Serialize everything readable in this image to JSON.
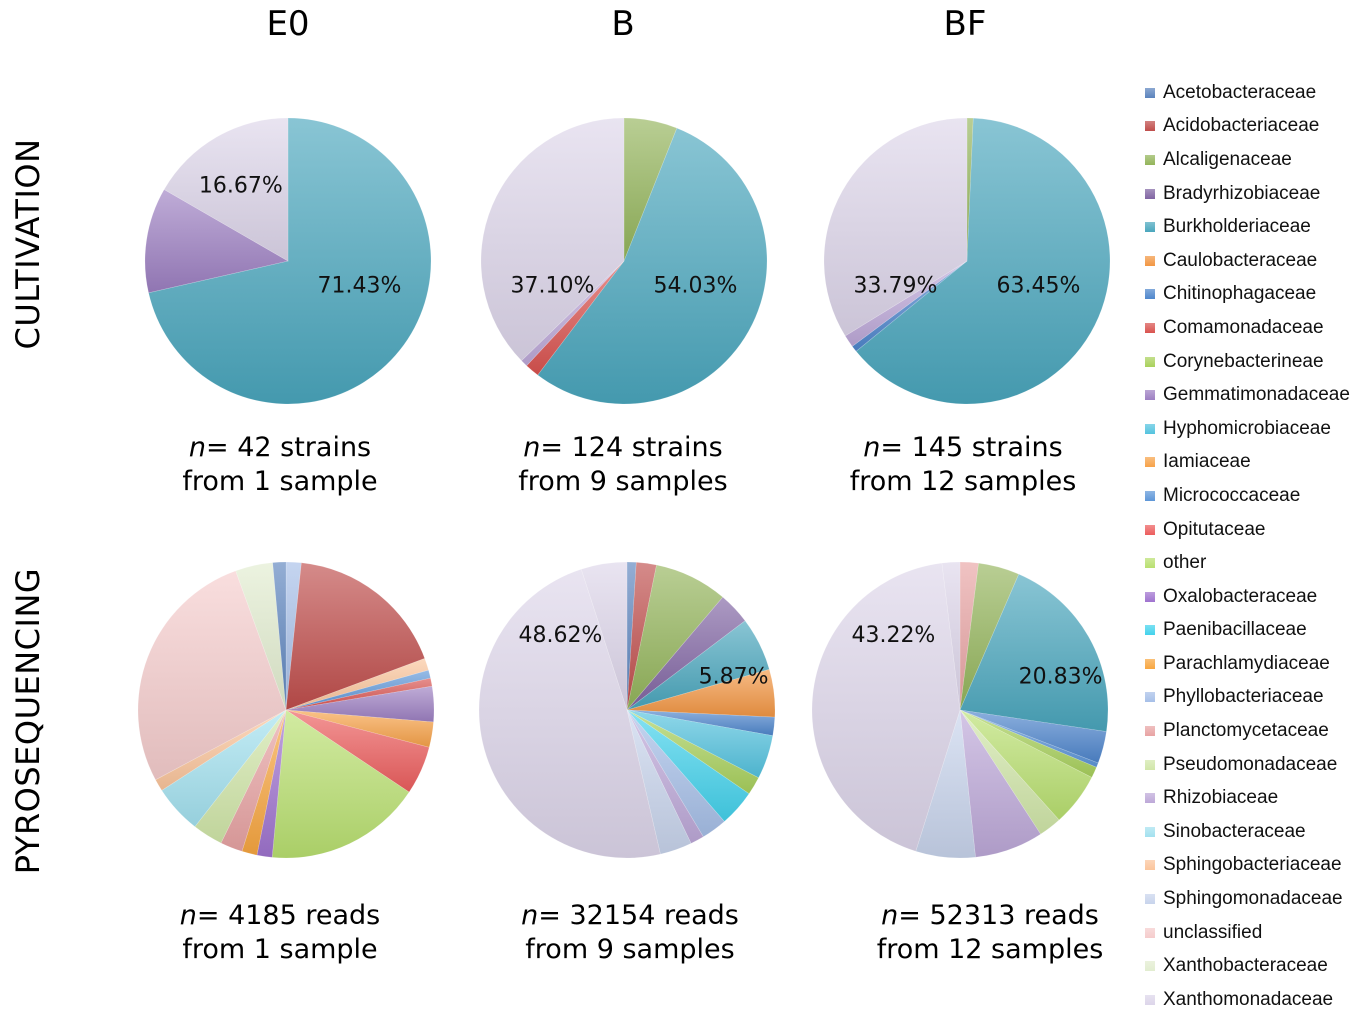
{
  "columns": [
    "E0",
    "B",
    "BF"
  ],
  "rows": [
    "CULTIVATION",
    "PYROSEQUENCING"
  ],
  "legend": [
    {
      "name": "Acetobacteraceae",
      "color": "#5b83bd"
    },
    {
      "name": "Acidobacteriaceae",
      "color": "#bf4d4b"
    },
    {
      "name": "Alcaligenaceae",
      "color": "#93b45a"
    },
    {
      "name": "Bradyrhizobiaceae",
      "color": "#8064a2"
    },
    {
      "name": "Burkholderiaceae",
      "color": "#4aa6bd"
    },
    {
      "name": "Caulobacteraceae",
      "color": "#f29643"
    },
    {
      "name": "Chitinophagaceae",
      "color": "#4e86cc"
    },
    {
      "name": "Comamonadaceae",
      "color": "#d9534f"
    },
    {
      "name": "Corynebacterineae",
      "color": "#a9d15c"
    },
    {
      "name": "Gemmatimonadaceae",
      "color": "#9c7fc2"
    },
    {
      "name": "Hyphomicrobiaceae",
      "color": "#54c3df"
    },
    {
      "name": "Iamiaceae",
      "color": "#f7a249"
    },
    {
      "name": "Micrococcaceae",
      "color": "#5e96d8"
    },
    {
      "name": "Opitutaceae",
      "color": "#ec5d5d"
    },
    {
      "name": "other",
      "color": "#b9e070"
    },
    {
      "name": "Oxalobacteraceae",
      "color": "#9f73cf"
    },
    {
      "name": "Paenibacillaceae",
      "color": "#43d2ec"
    },
    {
      "name": "Parachlamydiaceae",
      "color": "#f8a640"
    },
    {
      "name": "Phyllobacteriaceae",
      "color": "#a6bfe8"
    },
    {
      "name": "Planctomycetaceae",
      "color": "#e8a3a3"
    },
    {
      "name": "Pseudomonadaceae",
      "color": "#d1e6a9"
    },
    {
      "name": "Rhizobiaceae",
      "color": "#bda8d8"
    },
    {
      "name": "Sinobacteraceae",
      "color": "#a3e1ef"
    },
    {
      "name": "Sphingobacteriaceae",
      "color": "#fbc59b"
    },
    {
      "name": "Sphingomonadaceae",
      "color": "#c8d4ec"
    },
    {
      "name": "unclassified",
      "color": "#f5cccc"
    },
    {
      "name": "Xanthobacteraceae",
      "color": "#e2edd0"
    },
    {
      "name": "Xanthomonadaceae",
      "color": "#ddd5ea"
    }
  ],
  "captions": [
    {
      "n": "n",
      "line1": "= 42 strains",
      "line2": "from 1 sample"
    },
    {
      "n": "n",
      "line1": "= 124 strains",
      "line2": "from 9 samples"
    },
    {
      "n": "n",
      "line1": "= 145 strains",
      "line2": "from 12 samples"
    },
    {
      "n": "n",
      "line1": "= 4185 reads",
      "line2": "from 1 sample"
    },
    {
      "n": "n",
      "line1": "= 32154 reads",
      "line2": "from 9 samples"
    },
    {
      "n": "n",
      "line1": "= 52313 reads",
      "line2": "from 12 samples"
    }
  ],
  "chart_data": [
    {
      "type": "pie",
      "panel": "CULTIVATION / E0",
      "slices": [
        {
          "label": "Burkholderiaceae",
          "value": 71.43,
          "color": "#4aa6bd",
          "text": "71.43%"
        },
        {
          "label": "Gemmatimonadaceae",
          "value": 11.9,
          "color": "#9c7fc2"
        },
        {
          "label": "Xanthomonadaceae",
          "value": 16.67,
          "color": "#ddd5ea",
          "text": "16.67%"
        }
      ]
    },
    {
      "type": "pie",
      "panel": "CULTIVATION / B",
      "slices": [
        {
          "label": "Alcaligenaceae",
          "value": 6.0,
          "color": "#93b45a"
        },
        {
          "label": "Burkholderiaceae",
          "value": 54.03,
          "color": "#4aa6bd",
          "text": "54.03%"
        },
        {
          "label": "Comamonadaceae",
          "value": 1.6,
          "color": "#d9534f"
        },
        {
          "label": "Rhizobiaceae",
          "value": 0.8,
          "color": "#bda8d8"
        },
        {
          "label": "Xanthomonadaceae",
          "value": 37.1,
          "color": "#ddd5ea",
          "text": "37.10%"
        }
      ]
    },
    {
      "type": "pie",
      "panel": "CULTIVATION / BF",
      "slices": [
        {
          "label": "Alcaligenaceae",
          "value": 0.7,
          "color": "#93b45a"
        },
        {
          "label": "Burkholderiaceae",
          "value": 63.45,
          "color": "#4aa6bd",
          "text": "63.45%"
        },
        {
          "label": "Chitinophagaceae",
          "value": 0.7,
          "color": "#4e86cc"
        },
        {
          "label": "Rhizobiaceae",
          "value": 1.4,
          "color": "#bda8d8"
        },
        {
          "label": "Xanthomonadaceae",
          "value": 33.79,
          "color": "#ddd5ea",
          "text": "33.79%"
        }
      ]
    },
    {
      "type": "pie",
      "panel": "PYROSEQUENCING / E0",
      "slices": [
        {
          "label": "Phyllobacteriaceae",
          "value": 1.5,
          "color": "#a6bfe8"
        },
        {
          "label": "Acidobacteriaceae",
          "value": 16.0,
          "color": "#bf4d4b"
        },
        {
          "label": "Sphingobacteriaceae",
          "value": 1.2,
          "color": "#fbc59b"
        },
        {
          "label": "Micrococcaceae",
          "value": 0.8,
          "color": "#5e96d8"
        },
        {
          "label": "Comamonadaceae",
          "value": 0.8,
          "color": "#d9534f"
        },
        {
          "label": "Gemmatimonadaceae",
          "value": 3.5,
          "color": "#9c7fc2"
        },
        {
          "label": "Iamiaceae",
          "value": 2.5,
          "color": "#f7a249"
        },
        {
          "label": "Opitutaceae",
          "value": 4.8,
          "color": "#ec5d5d"
        },
        {
          "label": "other",
          "value": 15.5,
          "color": "#b9e070"
        },
        {
          "label": "Oxalobacteraceae",
          "value": 1.5,
          "color": "#9f73cf"
        },
        {
          "label": "Parachlamydiaceae",
          "value": 1.5,
          "color": "#f8a640"
        },
        {
          "label": "Planctomycetaceae",
          "value": 2.2,
          "color": "#e8a3a3"
        },
        {
          "label": "Pseudomonadaceae",
          "value": 3.0,
          "color": "#d1e6a9"
        },
        {
          "label": "Sinobacteraceae",
          "value": 4.8,
          "color": "#a3e1ef"
        },
        {
          "label": "Sphingobacteriaceae",
          "value": 1.2,
          "color": "#fbc59b"
        },
        {
          "label": "unclassified",
          "value": 24.7,
          "color": "#f5cccc"
        },
        {
          "label": "Xanthobacteraceae",
          "value": 3.7,
          "color": "#e2edd0"
        },
        {
          "label": "Acetobacteraceae",
          "value": 1.3,
          "color": "#5b83bd"
        }
      ]
    },
    {
      "type": "pie",
      "panel": "PYROSEQUENCING / B",
      "slices": [
        {
          "label": "Acetobacteraceae",
          "value": 1.0,
          "color": "#5b83bd"
        },
        {
          "label": "Acidobacteriaceae",
          "value": 2.2,
          "color": "#bf4d4b"
        },
        {
          "label": "Alcaligenaceae",
          "value": 8.0,
          "color": "#93b45a"
        },
        {
          "label": "Bradyrhizobiaceae",
          "value": 3.5,
          "color": "#8064a2"
        },
        {
          "label": "Burkholderiaceae",
          "value": 5.87,
          "color": "#4aa6bd",
          "text": "5.87%"
        },
        {
          "label": "Caulobacteraceae",
          "value": 5.2,
          "color": "#f29643"
        },
        {
          "label": "Chitinophagaceae",
          "value": 2.0,
          "color": "#4e86cc"
        },
        {
          "label": "Hyphomicrobiaceae",
          "value": 4.8,
          "color": "#54c3df"
        },
        {
          "label": "Corynebacterineae",
          "value": 2.0,
          "color": "#a9d15c"
        },
        {
          "label": "Paenibacillaceae",
          "value": 4.0,
          "color": "#43d2ec"
        },
        {
          "label": "Phyllobacteriaceae",
          "value": 2.8,
          "color": "#a6bfe8"
        },
        {
          "label": "Rhizobiaceae",
          "value": 1.5,
          "color": "#bda8d8"
        },
        {
          "label": "Sphingomonadaceae",
          "value": 3.5,
          "color": "#c8d4ec"
        },
        {
          "label": "Xanthomonadaceae",
          "value": 48.62,
          "color": "#ddd5ea",
          "text": "48.62%"
        },
        {
          "label": "unclassified",
          "value": 5.0,
          "color": "#ddd5ea"
        }
      ]
    },
    {
      "type": "pie",
      "panel": "PYROSEQUENCING / BF",
      "slices": [
        {
          "label": "Acidobacteriaceae",
          "value": 2.0,
          "color": "#e8a3a3"
        },
        {
          "label": "Alcaligenaceae",
          "value": 4.5,
          "color": "#93b45a"
        },
        {
          "label": "Burkholderiaceae",
          "value": 20.83,
          "color": "#4aa6bd",
          "text": "20.83%"
        },
        {
          "label": "Chitinophagaceae",
          "value": 3.5,
          "color": "#4e86cc"
        },
        {
          "label": "Micrococcaceae",
          "value": 0.5,
          "color": "#5e96d8"
        },
        {
          "label": "Corynebacterineae",
          "value": 1.2,
          "color": "#a9d15c"
        },
        {
          "label": "other",
          "value": 5.8,
          "color": "#b9e070"
        },
        {
          "label": "Pseudomonadaceae",
          "value": 2.5,
          "color": "#d1e6a9"
        },
        {
          "label": "Rhizobiaceae",
          "value": 7.5,
          "color": "#bda8d8"
        },
        {
          "label": "Sphingomonadaceae",
          "value": 6.5,
          "color": "#c8d4ec"
        },
        {
          "label": "Xanthomonadaceae",
          "value": 43.22,
          "color": "#ddd5ea",
          "text": "43.22%"
        },
        {
          "label": "unclassified",
          "value": 1.95,
          "color": "#ddd5ea"
        }
      ]
    }
  ]
}
